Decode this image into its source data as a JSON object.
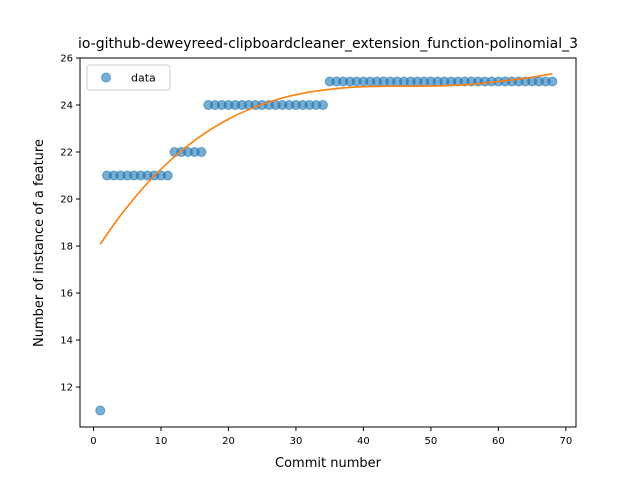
{
  "chart_data": {
    "type": "scatter",
    "title": "io-github-deweyreed-clipboardcleaner_extension_function-polinomial_3",
    "xlabel": "Commit number",
    "ylabel": "Number of instance of a feature",
    "xlim": [
      -2,
      71.5
    ],
    "ylim": [
      10.3,
      26
    ],
    "xticks": [
      0,
      10,
      20,
      30,
      40,
      50,
      60,
      70
    ],
    "yticks": [
      12,
      14,
      16,
      18,
      20,
      22,
      24,
      26
    ],
    "grid": false,
    "legend": {
      "placement": "top-left",
      "entries": [
        "data"
      ]
    },
    "colors": {
      "data": "#1f77b4",
      "fit": "#ff7f0e"
    },
    "series": [
      {
        "name": "data",
        "kind": "scatter",
        "x": [
          1,
          2,
          3,
          4,
          5,
          6,
          7,
          8,
          9,
          10,
          11,
          12,
          13,
          14,
          15,
          16,
          17,
          18,
          19,
          20,
          21,
          22,
          23,
          24,
          25,
          26,
          27,
          28,
          29,
          30,
          31,
          32,
          33,
          34,
          35,
          36,
          37,
          38,
          39,
          40,
          41,
          42,
          43,
          44,
          45,
          46,
          47,
          48,
          49,
          50,
          51,
          52,
          53,
          54,
          55,
          56,
          57,
          58,
          59,
          60,
          61,
          62,
          63,
          64,
          65,
          66,
          67,
          68
        ],
        "y": [
          11,
          21,
          21,
          21,
          21,
          21,
          21,
          21,
          21,
          21,
          21,
          22,
          22,
          22,
          22,
          22,
          24,
          24,
          24,
          24,
          24,
          24,
          24,
          24,
          24,
          24,
          24,
          24,
          24,
          24,
          24,
          24,
          24,
          24,
          25,
          25,
          25,
          25,
          25,
          25,
          25,
          25,
          25,
          25,
          25,
          25,
          25,
          25,
          25,
          25,
          25,
          25,
          25,
          25,
          25,
          25,
          25,
          25,
          25,
          25,
          25,
          25,
          25,
          25,
          25,
          25,
          25,
          25
        ]
      },
      {
        "kind": "line",
        "x": [
          1,
          4,
          8,
          12,
          16,
          20,
          24,
          28,
          32,
          36,
          40,
          44,
          48,
          52,
          56,
          60,
          64,
          68
        ],
        "y": [
          18.08,
          19.3,
          20.68,
          21.8,
          22.7,
          23.4,
          23.92,
          24.3,
          24.55,
          24.7,
          24.78,
          24.8,
          24.8,
          24.82,
          24.88,
          25.0,
          25.14,
          25.33
        ]
      }
    ]
  }
}
